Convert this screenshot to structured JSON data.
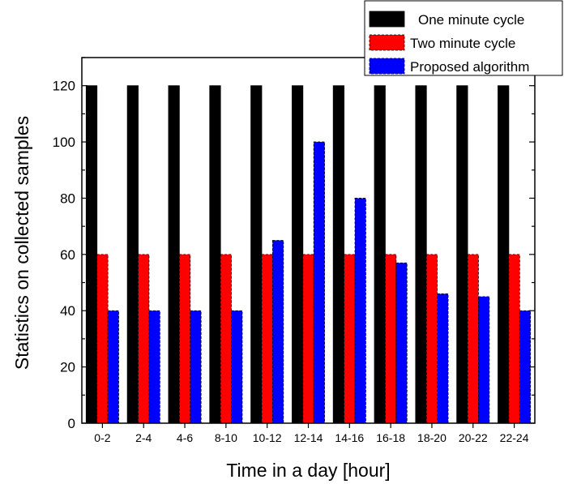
{
  "chart_data": {
    "type": "bar",
    "categories": [
      "0-2",
      "2-4",
      "4-6",
      "8-10",
      "10-12",
      "12-14",
      "14-16",
      "16-18",
      "18-20",
      "20-22",
      "22-24"
    ],
    "series": [
      {
        "name": "One minute cycle",
        "color": "#000000",
        "values": [
          120,
          120,
          120,
          120,
          120,
          120,
          120,
          120,
          120,
          120,
          120
        ]
      },
      {
        "name": "Two minute cycle",
        "color": "#ff0000",
        "values": [
          60,
          60,
          60,
          60,
          60,
          60,
          60,
          60,
          60,
          60,
          60
        ]
      },
      {
        "name": "Proposed algorithm",
        "color": "#0000ff",
        "values": [
          40,
          40,
          40,
          40,
          65,
          100,
          80,
          57,
          46,
          45,
          40
        ]
      }
    ],
    "xlabel": "Time in a day [hour]",
    "ylabel": "Statistics on collected samples",
    "ylim": [
      0,
      130
    ],
    "yticks": [
      0,
      20,
      40,
      60,
      80,
      100,
      120
    ],
    "grid": false,
    "legend_position": "top-right"
  }
}
